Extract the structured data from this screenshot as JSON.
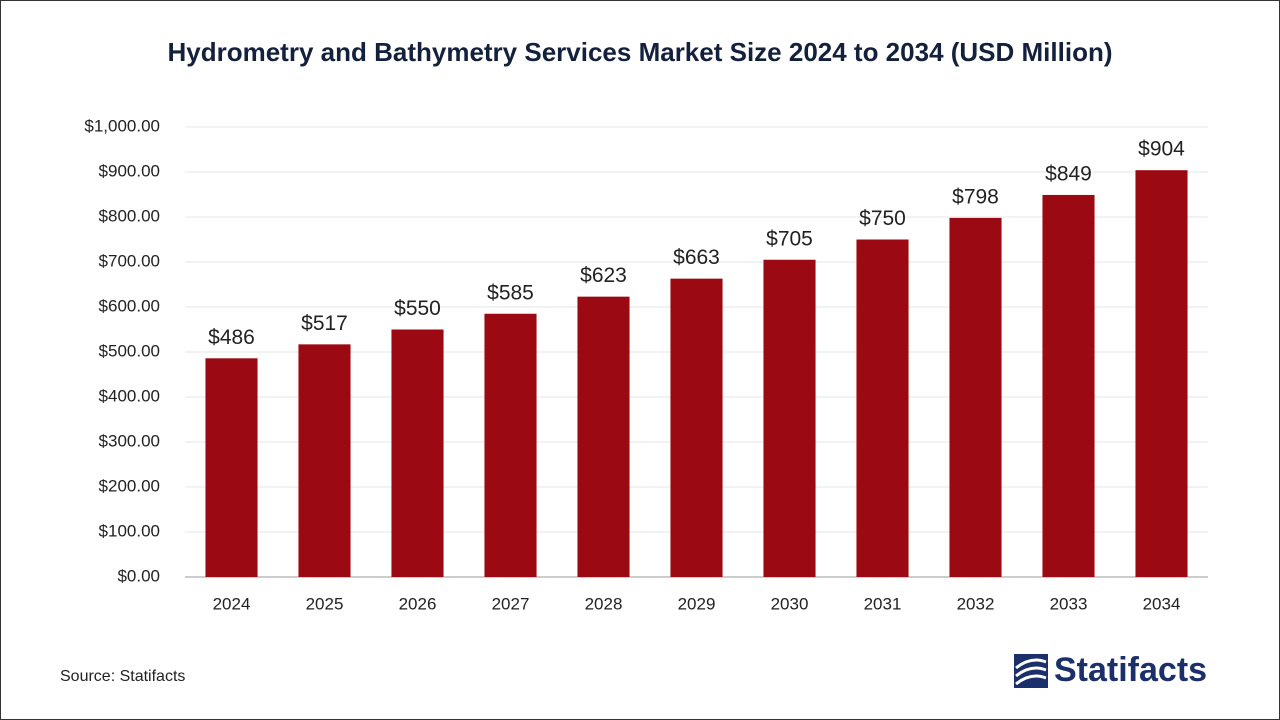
{
  "chart_data": {
    "type": "bar",
    "title": "Hydrometry and Bathymetry Services Market Size 2024 to 2034 (USD Million)",
    "categories": [
      "2024",
      "2025",
      "2026",
      "2027",
      "2028",
      "2029",
      "2030",
      "2031",
      "2032",
      "2033",
      "2034"
    ],
    "values": [
      486,
      517,
      550,
      585,
      623,
      663,
      705,
      750,
      798,
      849,
      904
    ],
    "value_labels": [
      "$486",
      "$517",
      "$550",
      "$585",
      "$623",
      "$663",
      "$705",
      "$750",
      "$798",
      "$849",
      "$904"
    ],
    "color": "#9b0a12",
    "ylim": [
      0,
      1000
    ],
    "yticks": [
      {
        "value": 0,
        "label": "$0.00"
      },
      {
        "value": 100,
        "label": "$100.00"
      },
      {
        "value": 200,
        "label": "$200.00"
      },
      {
        "value": 300,
        "label": "$300.00"
      },
      {
        "value": 400,
        "label": "$400.00"
      },
      {
        "value": 500,
        "label": "$500.00"
      },
      {
        "value": 600,
        "label": "$600.00"
      },
      {
        "value": 700,
        "label": "$700.00"
      },
      {
        "value": 800,
        "label": "$800.00"
      },
      {
        "value": 900,
        "label": "$900.00"
      },
      {
        "value": 1000,
        "label": "$1,000.00"
      }
    ],
    "grid": true,
    "source": "Source: Statifacts",
    "logo": "Statifacts"
  }
}
